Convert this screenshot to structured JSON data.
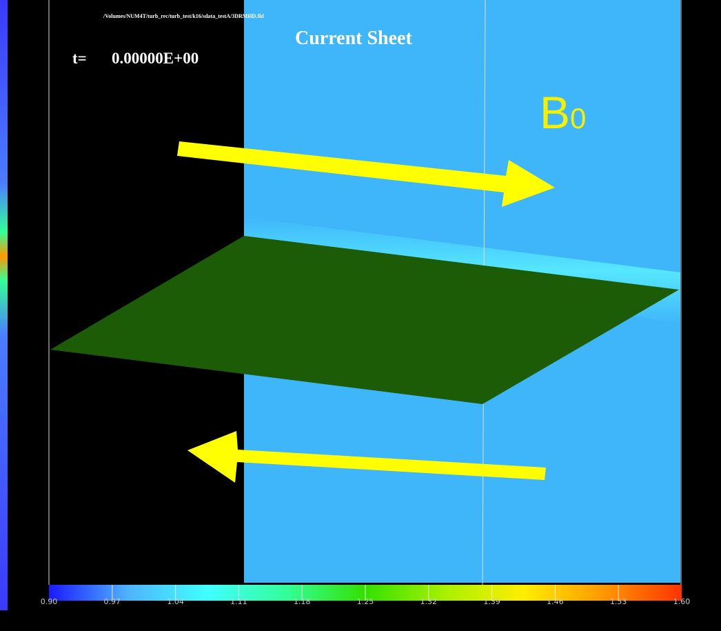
{
  "header": {
    "file_path": "/Volumes/NUM4T/turb_rec/turb_test/k16/sdata_testA/3DRMHD.fld",
    "title": "Current Sheet",
    "time_label": "t=",
    "time_value": "0.00000E+00"
  },
  "field_label": {
    "text": "B",
    "subscript": "0"
  },
  "arrows": [
    {
      "name": "upper-field-arrow",
      "direction": "right",
      "color": "#ffff00"
    },
    {
      "name": "lower-field-arrow",
      "direction": "left",
      "color": "#ffff00"
    }
  ],
  "colorbar": {
    "min": 0.9,
    "max": 1.6,
    "tick_labels": [
      "0.90",
      "0.97",
      "1.04",
      "1.11",
      "1.18",
      "1.25",
      "1.32",
      "1.39",
      "1.46",
      "1.53",
      "1.60"
    ],
    "colors": [
      "#1a1aff",
      "#4fb3ff",
      "#40ffff",
      "#33ff99",
      "#33e000",
      "#a8f000",
      "#ffee00",
      "#ff9900",
      "#ff3300"
    ]
  },
  "colors": {
    "background": "#000000",
    "sheet_region": "#3fb6fa",
    "sheet_center_glow": "#5af0ff",
    "plane": "#1d5c06",
    "annotation": "#f5f000"
  }
}
